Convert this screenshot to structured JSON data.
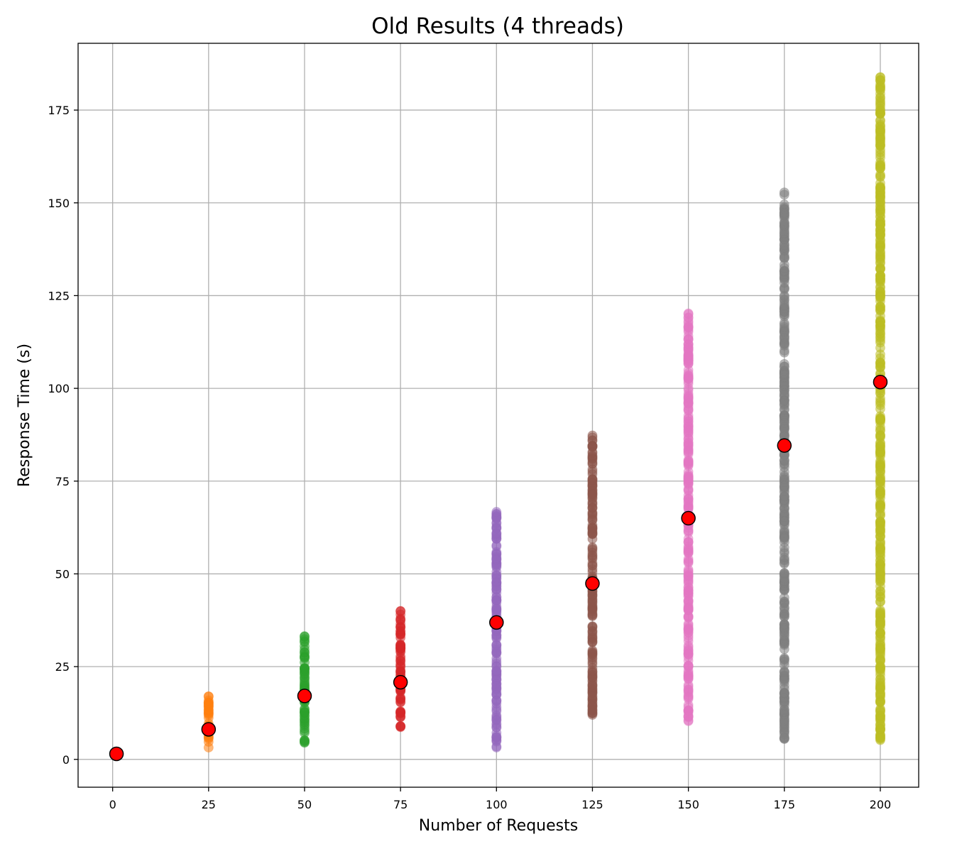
{
  "chart_data": {
    "type": "scatter",
    "title": "Old Results (4 threads)",
    "xlabel": "Number of Requests",
    "ylabel": "Response Time (s)",
    "xlim": [
      -9,
      210
    ],
    "ylim": [
      -7.5,
      193
    ],
    "xticks": [
      0,
      25,
      50,
      75,
      100,
      125,
      150,
      175,
      200
    ],
    "yticks": [
      0,
      25,
      50,
      75,
      100,
      125,
      150,
      175
    ],
    "grid": true,
    "legend": false,
    "series": [
      {
        "x": 1,
        "min": 1.5,
        "max": 1.5,
        "color": "#1f77b4"
      },
      {
        "x": 25,
        "min": 3.2,
        "max": 17.0,
        "color": "#ff7f0e"
      },
      {
        "x": 50,
        "min": 4.5,
        "max": 33.2,
        "color": "#2ca02c"
      },
      {
        "x": 75,
        "min": 8.7,
        "max": 40.0,
        "color": "#d62728"
      },
      {
        "x": 100,
        "min": 3.2,
        "max": 66.7,
        "color": "#9467bd"
      },
      {
        "x": 125,
        "min": 12.0,
        "max": 87.3,
        "color": "#8c564b"
      },
      {
        "x": 150,
        "min": 10.3,
        "max": 120.2,
        "color": "#e377c2"
      },
      {
        "x": 175,
        "min": 5.5,
        "max": 152.8,
        "color": "#7f7f7f"
      },
      {
        "x": 200,
        "min": 5.2,
        "max": 183.9,
        "color": "#bcbd22"
      }
    ],
    "means": {
      "x": [
        1,
        25,
        50,
        75,
        100,
        125,
        150,
        175,
        200
      ],
      "y": [
        1.5,
        8.1,
        17.1,
        20.8,
        36.9,
        47.4,
        65.0,
        84.6,
        101.7
      ],
      "color": "#ff0000"
    }
  }
}
